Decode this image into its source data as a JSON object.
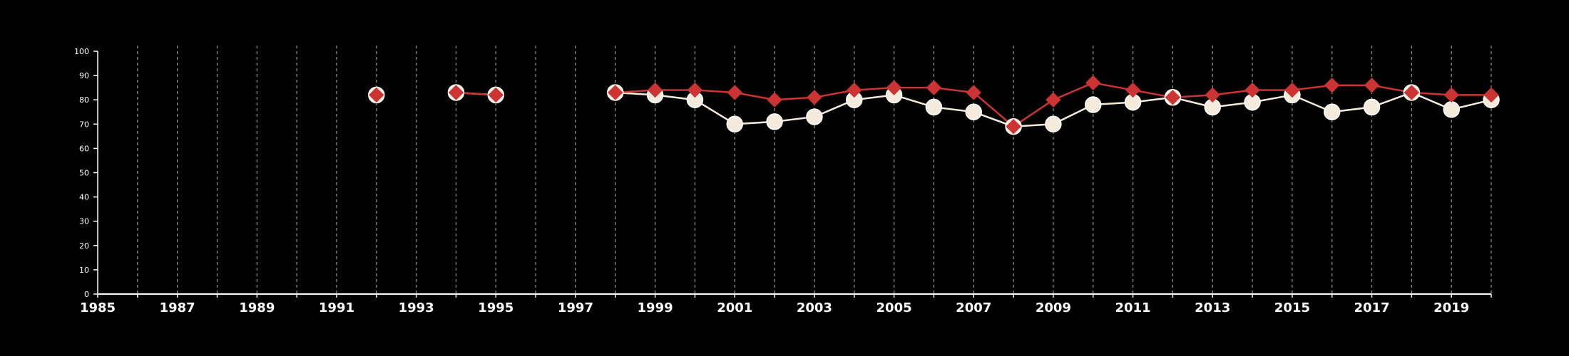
{
  "chart_data": {
    "type": "line",
    "title": "",
    "xlabel": "",
    "ylabel": "",
    "xlim": [
      1985,
      2020
    ],
    "ylim": [
      0,
      100
    ],
    "yticks": [
      0,
      10,
      20,
      30,
      40,
      50,
      60,
      70,
      80,
      90,
      100
    ],
    "xticks": [
      1985,
      1987,
      1989,
      1991,
      1993,
      1995,
      1997,
      1999,
      2001,
      2003,
      2005,
      2007,
      2009,
      2011,
      2013,
      2015,
      2017,
      2019
    ],
    "grid": "vertical dashed, yearly",
    "background": "#000000",
    "series": [
      {
        "marker": "circle",
        "color": "#f5ebdc",
        "points": [
          [
            1992,
            82
          ],
          [
            1994,
            83
          ],
          [
            1995,
            82
          ],
          [
            1998,
            83
          ],
          [
            1999,
            82
          ],
          [
            2000,
            80
          ],
          [
            2001,
            70
          ],
          [
            2002,
            71
          ],
          [
            2003,
            73
          ],
          [
            2004,
            80
          ],
          [
            2005,
            82
          ],
          [
            2006,
            77
          ],
          [
            2007,
            75
          ],
          [
            2008,
            69
          ],
          [
            2009,
            70
          ],
          [
            2010,
            78
          ],
          [
            2011,
            79
          ],
          [
            2012,
            81
          ],
          [
            2013,
            77
          ],
          [
            2014,
            79
          ],
          [
            2015,
            82
          ],
          [
            2016,
            75
          ],
          [
            2017,
            77
          ],
          [
            2018,
            83
          ],
          [
            2019,
            76
          ],
          [
            2020,
            80
          ]
        ]
      },
      {
        "marker": "diamond",
        "color": "#cc3333",
        "points": [
          [
            1992,
            82
          ],
          [
            1994,
            83
          ],
          [
            1995,
            82
          ],
          [
            1998,
            83
          ],
          [
            1999,
            84
          ],
          [
            2000,
            84
          ],
          [
            2001,
            83
          ],
          [
            2002,
            80
          ],
          [
            2003,
            81
          ],
          [
            2004,
            84
          ],
          [
            2005,
            85
          ],
          [
            2006,
            85
          ],
          [
            2007,
            83
          ],
          [
            2008,
            69
          ],
          [
            2009,
            80
          ],
          [
            2010,
            87
          ],
          [
            2011,
            84
          ],
          [
            2012,
            81
          ],
          [
            2013,
            82
          ],
          [
            2014,
            84
          ],
          [
            2015,
            84
          ],
          [
            2016,
            86
          ],
          [
            2017,
            86
          ],
          [
            2018,
            83
          ],
          [
            2019,
            82
          ],
          [
            2020,
            82
          ]
        ]
      }
    ]
  }
}
